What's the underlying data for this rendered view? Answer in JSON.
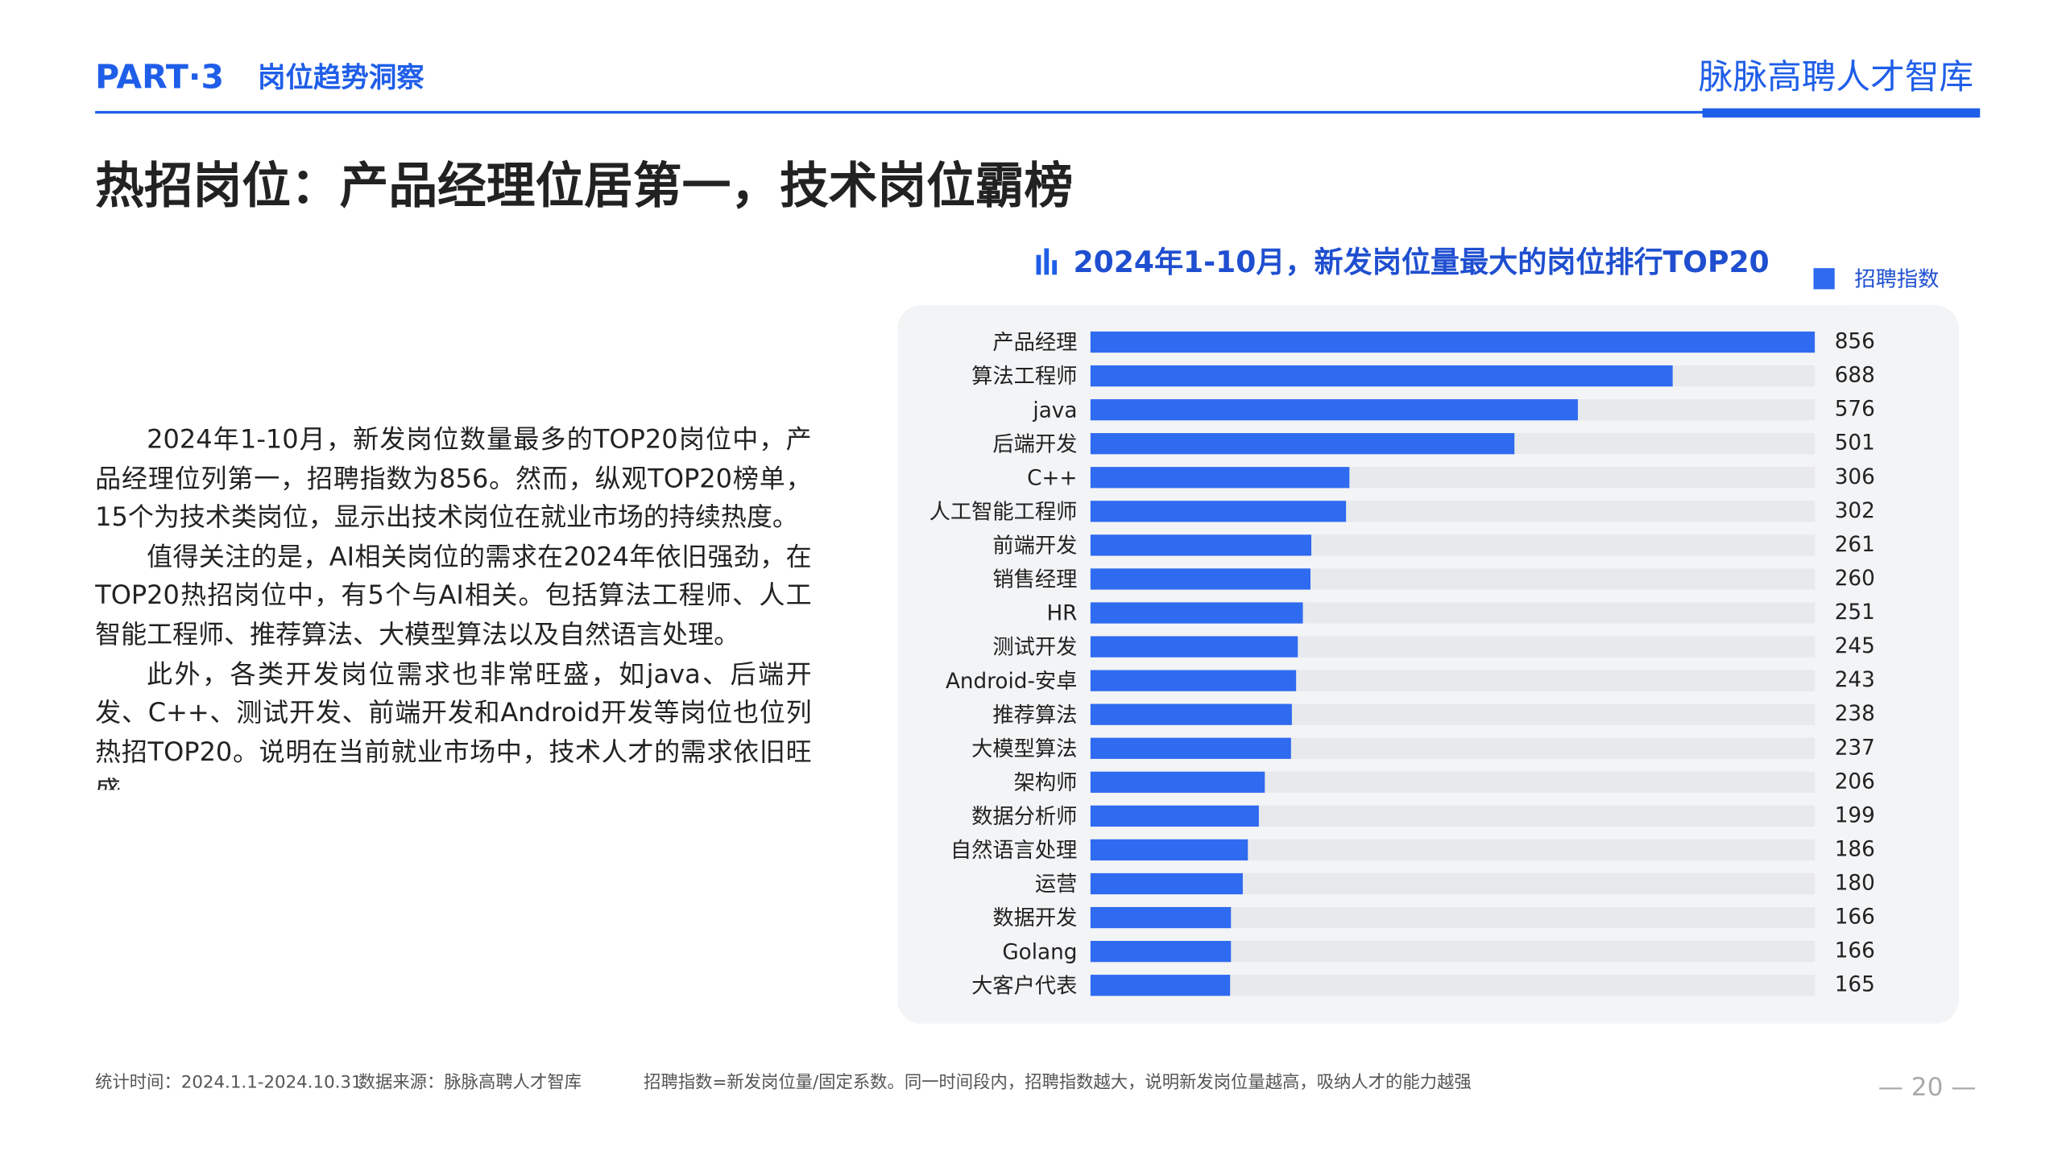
{
  "header": {
    "part": "PART·3",
    "section": "岗位趋势洞察",
    "brand": "脉脉高聘人才智库"
  },
  "title": "热招岗位：产品经理位居第一，技术岗位霸榜",
  "paragraphs": [
    "2024年1-10月，新发岗位数量最多的TOP20岗位中，产品经理位列第一，招聘指数为856。然而，纵观TOP20榜单，15个为技术类岗位，显示出技术岗位在就业市场的持续热度。",
    "值得关注的是，AI相关岗位的需求在2024年依旧强劲，在TOP20热招岗位中，有5个与AI相关。包括算法工程师、人工智能工程师、推荐算法、大模型算法以及自然语言处理。",
    "此外，各类开发岗位需求也非常旺盛，如java、后端开发、C++、测试开发、前端开发和Android开发等岗位也位列热招TOP20。说明在当前就业市场中，技术人才的需求依旧旺盛。"
  ],
  "chart_data": {
    "type": "hbar",
    "title": "2024年1-10月，新发岗位量最大的岗位排行TOP20",
    "categories": [
      "产品经理",
      "算法工程师",
      "java",
      "后端开发",
      "C++",
      "人工智能工程师",
      "前端开发",
      "销售经理",
      "HR",
      "测试开发",
      "Android-安卓",
      "推荐算法",
      "大模型算法",
      "架构师",
      "数据分析师",
      "自然语言处理",
      "运营",
      "数据开发",
      "Golang",
      "大客户代表"
    ],
    "series": [
      {
        "name": "招聘指数",
        "color": "#2f6bf0",
        "values": [
          856,
          688,
          576,
          501,
          306,
          302,
          261,
          260,
          251,
          245,
          243,
          238,
          237,
          206,
          199,
          186,
          180,
          166,
          166,
          165
        ]
      }
    ],
    "legend": "top-right"
  },
  "footer": {
    "period": "统计时间：2024.1.1-2024.10.31",
    "source": "数据来源：脉脉高聘人才智库",
    "note": "招聘指数=新发岗位量/固定系数。同一时间段内，招聘指数越大，说明新发岗位量越高，吸纳人才的能力越强",
    "page": "— 20 —"
  }
}
